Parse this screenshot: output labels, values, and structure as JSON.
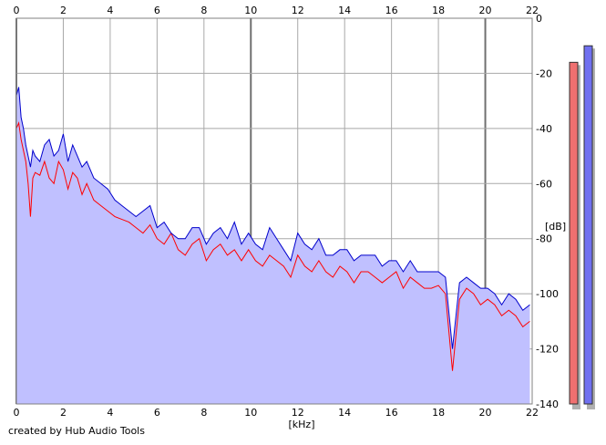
{
  "chart_data": {
    "type": "area",
    "xlabel": "[kHz]",
    "ylabel": "[dB]",
    "xlim": [
      0,
      22
    ],
    "ylim": [
      -140,
      0
    ],
    "x_ticks": [
      "0",
      "2",
      "4",
      "6",
      "8",
      "10",
      "12",
      "14",
      "16",
      "18",
      "20",
      "22"
    ],
    "y_ticks": [
      "0",
      "-20",
      "-40",
      "-60",
      "-80",
      "-100",
      "-120",
      "-140"
    ],
    "grid": true,
    "fill_color": "#c0c0ff",
    "series": [
      {
        "color": "#ff0000",
        "x": [
          0,
          0.1,
          0.2,
          0.3,
          0.4,
          0.5,
          0.6,
          0.7,
          0.8,
          1.0,
          1.2,
          1.4,
          1.6,
          1.8,
          2.0,
          2.2,
          2.4,
          2.6,
          2.8,
          3.0,
          3.3,
          3.6,
          3.9,
          4.2,
          4.5,
          4.8,
          5.1,
          5.4,
          5.7,
          6.0,
          6.3,
          6.6,
          6.9,
          7.2,
          7.5,
          7.8,
          8.1,
          8.4,
          8.7,
          9.0,
          9.3,
          9.6,
          9.9,
          10.2,
          10.5,
          10.8,
          11.1,
          11.4,
          11.7,
          12.0,
          12.3,
          12.6,
          12.9,
          13.2,
          13.5,
          13.8,
          14.1,
          14.4,
          14.7,
          15.0,
          15.3,
          15.6,
          15.9,
          16.2,
          16.5,
          16.8,
          17.1,
          17.4,
          17.7,
          18.0,
          18.3,
          18.6,
          18.9,
          19.2,
          19.5,
          19.8,
          20.1,
          20.4,
          20.7,
          21.0,
          21.3,
          21.6,
          21.9
        ],
        "values": [
          -40,
          -38,
          -44,
          -48,
          -52,
          -60,
          -72,
          -58,
          -56,
          -57,
          -52,
          -58,
          -60,
          -52,
          -55,
          -62,
          -56,
          -58,
          -64,
          -60,
          -66,
          -68,
          -70,
          -72,
          -73,
          -74,
          -76,
          -78,
          -75,
          -80,
          -82,
          -78,
          -84,
          -86,
          -82,
          -80,
          -88,
          -84,
          -82,
          -86,
          -84,
          -88,
          -84,
          -88,
          -90,
          -86,
          -88,
          -90,
          -94,
          -86,
          -90,
          -92,
          -88,
          -92,
          -94,
          -90,
          -92,
          -96,
          -92,
          -92,
          -94,
          -96,
          -94,
          -92,
          -98,
          -94,
          -96,
          -98,
          -98,
          -97,
          -100,
          -128,
          -102,
          -98,
          -100,
          -104,
          -102,
          -104,
          -108,
          -106,
          -108,
          -112,
          -110
        ]
      },
      {
        "color": "#0000cc",
        "x": [
          0,
          0.1,
          0.2,
          0.3,
          0.4,
          0.5,
          0.6,
          0.7,
          0.8,
          1.0,
          1.2,
          1.4,
          1.6,
          1.8,
          2.0,
          2.2,
          2.4,
          2.6,
          2.8,
          3.0,
          3.3,
          3.6,
          3.9,
          4.2,
          4.5,
          4.8,
          5.1,
          5.4,
          5.7,
          6.0,
          6.3,
          6.6,
          6.9,
          7.2,
          7.5,
          7.8,
          8.1,
          8.4,
          8.7,
          9.0,
          9.3,
          9.6,
          9.9,
          10.2,
          10.5,
          10.8,
          11.1,
          11.4,
          11.7,
          12.0,
          12.3,
          12.6,
          12.9,
          13.2,
          13.5,
          13.8,
          14.1,
          14.4,
          14.7,
          15.0,
          15.3,
          15.6,
          15.9,
          16.2,
          16.5,
          16.8,
          17.1,
          17.4,
          17.7,
          18.0,
          18.3,
          18.6,
          18.9,
          19.2,
          19.5,
          19.8,
          20.1,
          20.4,
          20.7,
          21.0,
          21.3,
          21.6,
          21.9
        ],
        "values": [
          -28,
          -25,
          -36,
          -40,
          -46,
          -50,
          -54,
          -48,
          -50,
          -52,
          -46,
          -44,
          -50,
          -48,
          -42,
          -52,
          -46,
          -50,
          -54,
          -52,
          -58,
          -60,
          -62,
          -66,
          -68,
          -70,
          -72,
          -70,
          -68,
          -76,
          -74,
          -78,
          -80,
          -80,
          -76,
          -76,
          -82,
          -78,
          -76,
          -80,
          -74,
          -82,
          -78,
          -82,
          -84,
          -76,
          -80,
          -84,
          -88,
          -78,
          -82,
          -84,
          -80,
          -86,
          -86,
          -84,
          -84,
          -88,
          -86,
          -86,
          -86,
          -90,
          -88,
          -88,
          -92,
          -88,
          -92,
          -92,
          -92,
          -92,
          -94,
          -120,
          -96,
          -94,
          -96,
          -98,
          -98,
          -100,
          -104,
          -100,
          -102,
          -106,
          -104
        ]
      }
    ],
    "level_bars": [
      {
        "color": "#f07070",
        "value": -16
      },
      {
        "color": "#7070f0",
        "value": -10
      }
    ]
  },
  "footer": {
    "credit": "created by Hub Audio Tools"
  }
}
